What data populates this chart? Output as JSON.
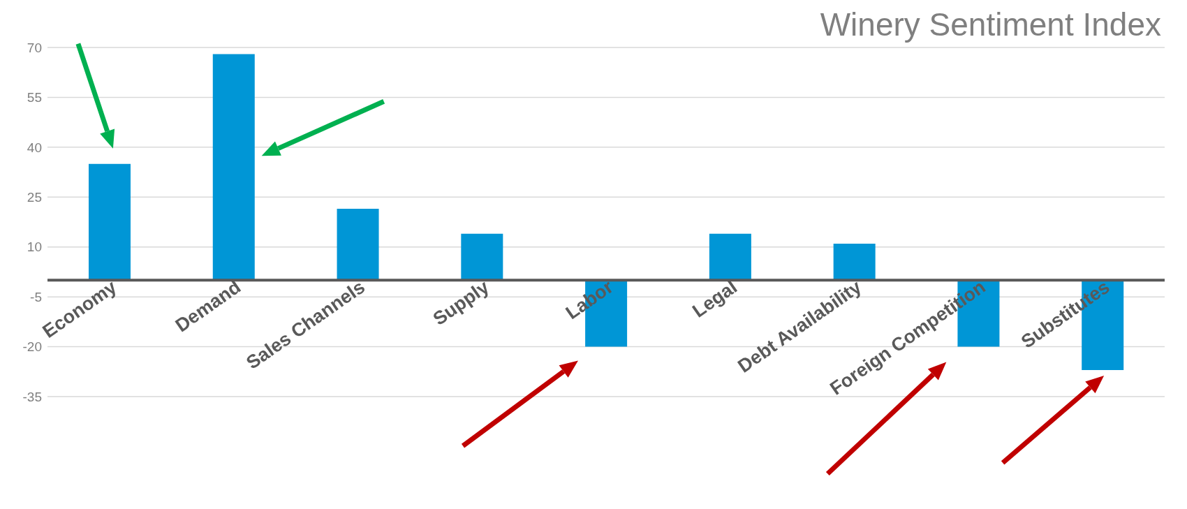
{
  "chart_data": {
    "type": "bar",
    "title": "Winery Sentiment Index",
    "categories": [
      "Economy",
      "Demand",
      "Sales Channels",
      "Supply",
      "Labor",
      "Legal",
      "Debt Availability",
      "Foreign Competition",
      "Substitutes"
    ],
    "values": [
      35,
      68,
      21.5,
      14,
      -20,
      14,
      11,
      -20,
      -27
    ],
    "color": "#0096d6",
    "ylim": [
      -35,
      70
    ],
    "yticks": [
      -35,
      -20,
      -5,
      10,
      25,
      40,
      55,
      70
    ],
    "grid": "y",
    "legend": false
  }
}
